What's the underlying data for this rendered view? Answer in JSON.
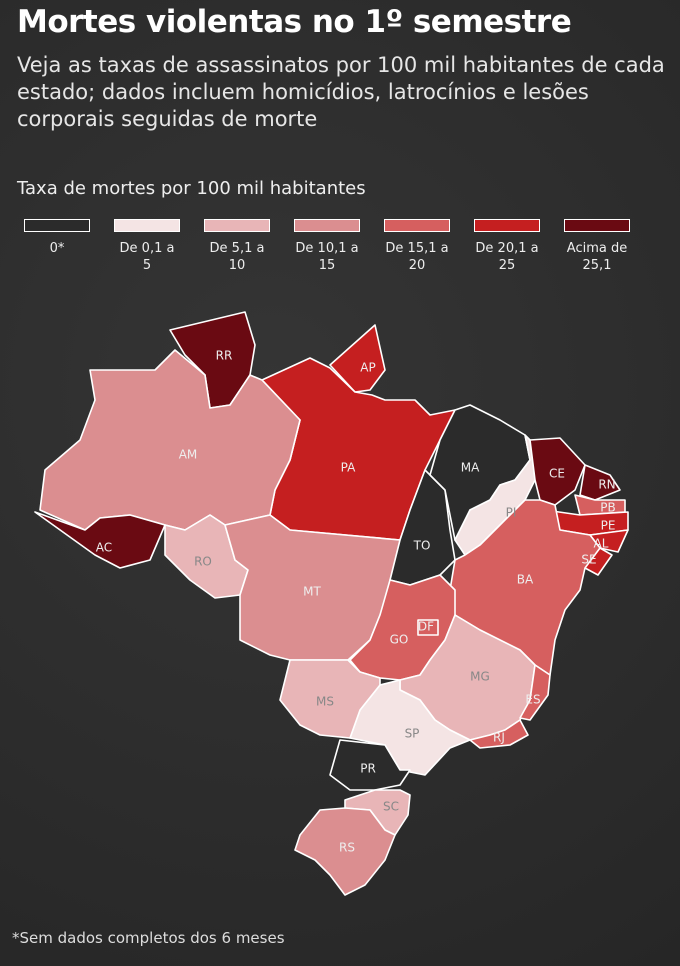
{
  "header": {
    "title": "Mortes violentas no 1º semestre",
    "subtitle": "Veja as taxas de assassinatos por 100 mil habitantes de cada estado; dados incluem homicídios, latrocínios e lesões corporais seguidas de morte"
  },
  "legend": {
    "title": "Taxa de mortes por 100 mil habitantes",
    "items": [
      {
        "label": "0*",
        "color": "#2b2b2b"
      },
      {
        "label": "De 0,1 a 5",
        "color": "#f4e4e4"
      },
      {
        "label": "De 5,1 a 10",
        "color": "#e8b5b7"
      },
      {
        "label": "De 10,1 a 15",
        "color": "#db8e90"
      },
      {
        "label": "De 15,1 a 20",
        "color": "#d65f5f"
      },
      {
        "label": "De 20,1 a 25",
        "color": "#c51f20"
      },
      {
        "label": "Acima de 25,1",
        "color": "#6a0a12"
      }
    ]
  },
  "map": {
    "states": [
      {
        "label": "RR",
        "class": 6
      },
      {
        "label": "AP",
        "class": 5
      },
      {
        "label": "PA",
        "class": 5
      },
      {
        "label": "AM",
        "class": 3
      },
      {
        "label": "AC",
        "class": 6
      },
      {
        "label": "RO",
        "class": 2
      },
      {
        "label": "MT",
        "class": 3
      },
      {
        "label": "TO",
        "class": 0
      },
      {
        "label": "MA",
        "class": 0
      },
      {
        "label": "PI",
        "class": 1
      },
      {
        "label": "CE",
        "class": 6
      },
      {
        "label": "RN",
        "class": 6
      },
      {
        "label": "PB",
        "class": 4
      },
      {
        "label": "PE",
        "class": 5
      },
      {
        "label": "AL",
        "class": 5
      },
      {
        "label": "SE",
        "class": 5
      },
      {
        "label": "BA",
        "class": 4
      },
      {
        "label": "GO",
        "class": 4
      },
      {
        "label": "DF",
        "class": 4
      },
      {
        "label": "MG",
        "class": 2
      },
      {
        "label": "ES",
        "class": 4
      },
      {
        "label": "RJ",
        "class": 4
      },
      {
        "label": "SP",
        "class": 1
      },
      {
        "label": "MS",
        "class": 2
      },
      {
        "label": "PR",
        "class": 0
      },
      {
        "label": "SC",
        "class": 2
      },
      {
        "label": "RS",
        "class": 3
      }
    ]
  },
  "footnote": "*Sem dados completos dos 6 meses"
}
